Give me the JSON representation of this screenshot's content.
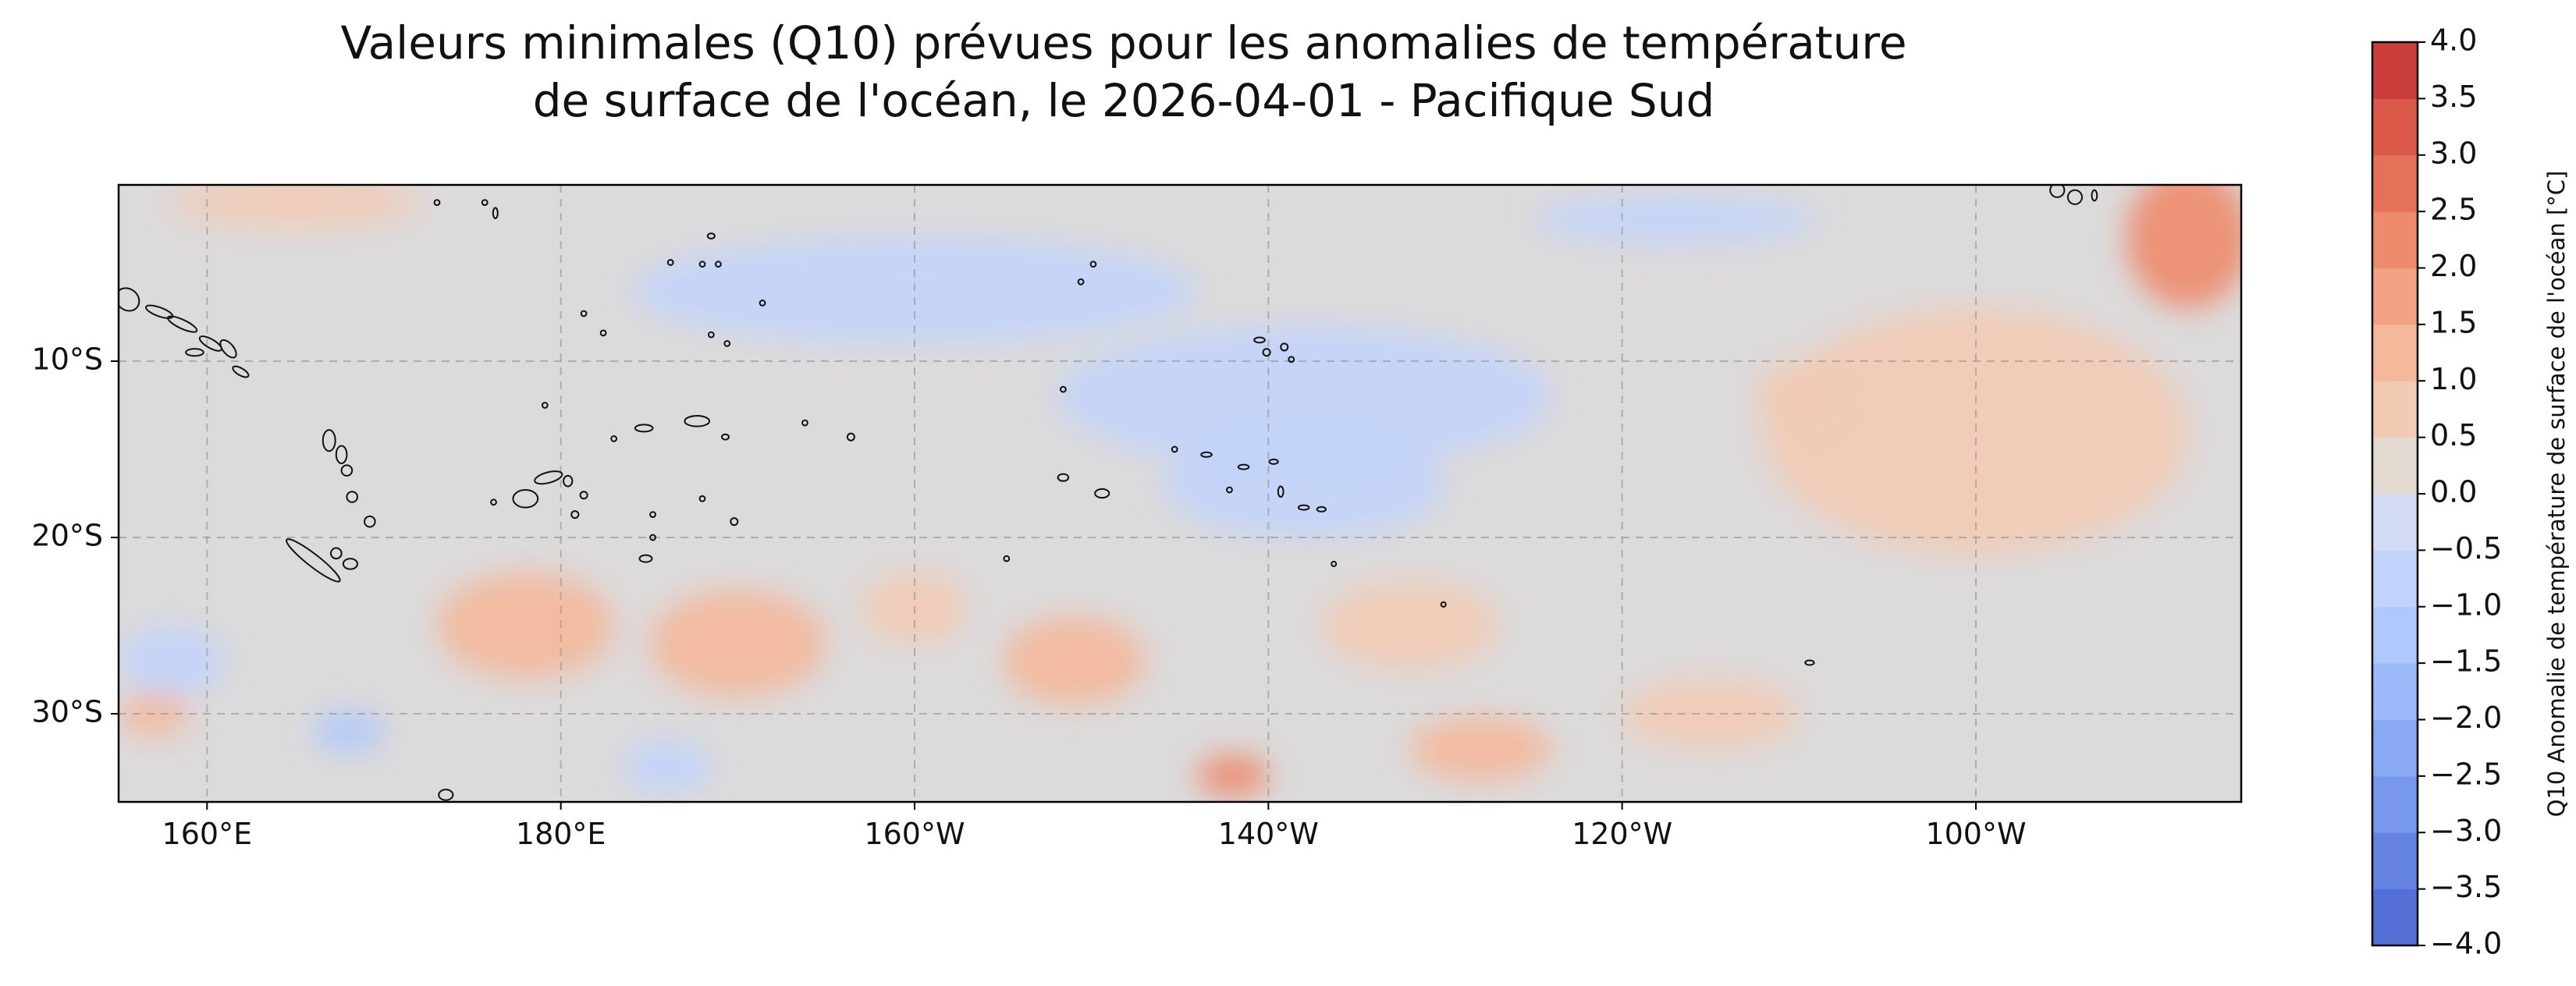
{
  "title": {
    "line1": "Valeurs minimales (Q10) prévues pour les anomalies de température",
    "line2": "de surface de l'océan, le 2026-04-01 - Pacifique Sud"
  },
  "map": {
    "region": "Pacifique Sud",
    "date": "2026-04-01",
    "extent": {
      "lon_min": 155,
      "lon_max": 275,
      "lat_min": -35,
      "lat_max": 0
    },
    "projection": "PlateCarree",
    "grid": true,
    "x_ticks": [
      {
        "lon": 160,
        "label": "160°E"
      },
      {
        "lon": 180,
        "label": "180°E"
      },
      {
        "lon": 200,
        "label": "160°W"
      },
      {
        "lon": 220,
        "label": "140°W"
      },
      {
        "lon": 240,
        "label": "120°W"
      },
      {
        "lon": 260,
        "label": "100°W"
      }
    ],
    "y_ticks": [
      {
        "lat": -10,
        "label": "10°S"
      },
      {
        "lat": -20,
        "label": "20°S"
      },
      {
        "lat": -30,
        "label": "30°S"
      }
    ],
    "background_level": "0.0 to 0.5",
    "anomaly_patches": [
      {
        "lon": 165,
        "lat": -1,
        "rx": 7,
        "ry": 1.4,
        "value": 0.8
      },
      {
        "lon": 260,
        "lat": -14,
        "rx": 12,
        "ry": 7,
        "value": 0.8
      },
      {
        "lon": 272,
        "lat": -3,
        "rx": 3.5,
        "ry": 4,
        "value": 2.3
      },
      {
        "lon": 250,
        "lat": -12,
        "rx": 2.5,
        "ry": 2,
        "value": 0.7
      },
      {
        "lon": 157,
        "lat": -30,
        "rx": 2,
        "ry": 1.2,
        "value": 1.2
      },
      {
        "lon": 178,
        "lat": -25,
        "rx": 5,
        "ry": 3,
        "value": 1.0
      },
      {
        "lon": 190,
        "lat": -26,
        "rx": 5,
        "ry": 3,
        "value": 1.0
      },
      {
        "lon": 200,
        "lat": -24,
        "rx": 3,
        "ry": 2,
        "value": 0.8
      },
      {
        "lon": 209,
        "lat": -27,
        "rx": 4,
        "ry": 2.5,
        "value": 1.0
      },
      {
        "lon": 228,
        "lat": -25,
        "rx": 5,
        "ry": 2.5,
        "value": 0.8
      },
      {
        "lon": 218,
        "lat": -33.5,
        "rx": 2,
        "ry": 1.2,
        "value": 2.0
      },
      {
        "lon": 232,
        "lat": -32,
        "rx": 4,
        "ry": 1.8,
        "value": 1.2
      },
      {
        "lon": 245,
        "lat": -30,
        "rx": 5,
        "ry": 2,
        "value": 0.7
      },
      {
        "lon": 243,
        "lat": -2,
        "rx": 8,
        "ry": 1.3,
        "value": -1.0
      },
      {
        "lon": 200,
        "lat": -6,
        "rx": 16,
        "ry": 3,
        "value": -0.6
      },
      {
        "lon": 222,
        "lat": -12,
        "rx": 14,
        "ry": 4,
        "value": -0.6
      },
      {
        "lon": 222,
        "lat": -17,
        "rx": 8,
        "ry": 3,
        "value": -0.6
      },
      {
        "lon": 158,
        "lat": -27,
        "rx": 3,
        "ry": 2,
        "value": -0.8
      },
      {
        "lon": 168,
        "lat": -31,
        "rx": 2,
        "ry": 1.2,
        "value": -1.3
      },
      {
        "lon": 186,
        "lat": -33,
        "rx": 2.5,
        "ry": 1.5,
        "value": -0.8
      }
    ],
    "islands": [
      {
        "lon": 155.5,
        "lat": -6.5,
        "rx": 0.7,
        "ry": 0.6,
        "rot": 40
      },
      {
        "lon": 157.3,
        "lat": -7.2,
        "rx": 0.8,
        "ry": 0.25,
        "rot": 20
      },
      {
        "lon": 158.6,
        "lat": -7.9,
        "rx": 0.9,
        "ry": 0.25,
        "rot": 25
      },
      {
        "lon": 160.2,
        "lat": -9.0,
        "rx": 0.7,
        "ry": 0.25,
        "rot": 30
      },
      {
        "lon": 161.2,
        "lat": -9.3,
        "rx": 0.6,
        "ry": 0.3,
        "rot": 50
      },
      {
        "lon": 159.3,
        "lat": -9.5,
        "rx": 0.5,
        "ry": 0.2,
        "rot": 0
      },
      {
        "lon": 161.9,
        "lat": -10.6,
        "rx": 0.5,
        "ry": 0.2,
        "rot": 30
      },
      {
        "lon": 166.9,
        "lat": -14.5,
        "rx": 0.35,
        "ry": 0.6,
        "rot": 0
      },
      {
        "lon": 167.6,
        "lat": -15.3,
        "rx": 0.3,
        "ry": 0.5,
        "rot": 0
      },
      {
        "lon": 167.9,
        "lat": -16.2,
        "rx": 0.3,
        "ry": 0.3,
        "rot": 0
      },
      {
        "lon": 168.2,
        "lat": -17.7,
        "rx": 0.3,
        "ry": 0.3,
        "rot": 0
      },
      {
        "lon": 169.2,
        "lat": -19.1,
        "rx": 0.3,
        "ry": 0.3,
        "rot": 0
      },
      {
        "lon": 166.0,
        "lat": -21.3,
        "rx": 1.9,
        "ry": 0.35,
        "rot": 38
      },
      {
        "lon": 167.3,
        "lat": -20.9,
        "rx": 0.3,
        "ry": 0.3,
        "rot": 0
      },
      {
        "lon": 168.1,
        "lat": -21.5,
        "rx": 0.4,
        "ry": 0.3,
        "rot": 0
      },
      {
        "lon": 178.0,
        "lat": -17.8,
        "rx": 0.7,
        "ry": 0.5,
        "rot": 0
      },
      {
        "lon": 179.3,
        "lat": -16.6,
        "rx": 0.8,
        "ry": 0.3,
        "rot": -15
      },
      {
        "lon": 180.4,
        "lat": -16.8,
        "rx": 0.25,
        "ry": 0.3,
        "rot": 0
      },
      {
        "lon": 180.8,
        "lat": -18.7,
        "rx": 0.2,
        "ry": 0.2,
        "rot": 0
      },
      {
        "lon": 181.3,
        "lat": -17.6,
        "rx": 0.2,
        "ry": 0.2,
        "rot": 0
      },
      {
        "lon": 184.7,
        "lat": -13.8,
        "rx": 0.5,
        "ry": 0.2,
        "rot": 0
      },
      {
        "lon": 187.7,
        "lat": -13.4,
        "rx": 0.7,
        "ry": 0.3,
        "rot": 0
      },
      {
        "lon": 189.3,
        "lat": -14.3,
        "rx": 0.2,
        "ry": 0.15,
        "rot": 0
      },
      {
        "lon": 184.8,
        "lat": -21.2,
        "rx": 0.35,
        "ry": 0.2,
        "rot": 0
      },
      {
        "lon": 185.2,
        "lat": -18.7,
        "rx": 0.15,
        "ry": 0.15,
        "rot": 0
      },
      {
        "lon": 189.8,
        "lat": -19.1,
        "rx": 0.2,
        "ry": 0.2,
        "rot": 0
      },
      {
        "lon": 193.8,
        "lat": -13.5,
        "rx": 0.15,
        "ry": 0.15,
        "rot": 0
      },
      {
        "lon": 196.4,
        "lat": -14.3,
        "rx": 0.2,
        "ry": 0.2,
        "rot": 0
      },
      {
        "lon": 188.0,
        "lat": -17.8,
        "rx": 0.15,
        "ry": 0.15,
        "rot": 0
      },
      {
        "lon": 183.0,
        "lat": -14.4,
        "rx": 0.15,
        "ry": 0.15,
        "rot": 0
      },
      {
        "lon": 179.1,
        "lat": -12.5,
        "rx": 0.15,
        "ry": 0.15,
        "rot": 0
      },
      {
        "lon": 176.2,
        "lat": -18.0,
        "rx": 0.15,
        "ry": 0.15,
        "rot": 0
      },
      {
        "lon": 173.0,
        "lat": -1.0,
        "rx": 0.15,
        "ry": 0.15,
        "rot": 0
      },
      {
        "lon": 175.7,
        "lat": -1.0,
        "rx": 0.15,
        "ry": 0.15,
        "rot": 0
      },
      {
        "lon": 176.3,
        "lat": -1.6,
        "rx": 0.1,
        "ry": 0.3,
        "rot": 0
      },
      {
        "lon": 181.3,
        "lat": -7.3,
        "rx": 0.15,
        "ry": 0.15,
        "rot": 0
      },
      {
        "lon": 182.4,
        "lat": -8.4,
        "rx": 0.15,
        "ry": 0.15,
        "rot": 0
      },
      {
        "lon": 188.5,
        "lat": -2.9,
        "rx": 0.2,
        "ry": 0.15,
        "rot": 0
      },
      {
        "lon": 188.0,
        "lat": -4.5,
        "rx": 0.15,
        "ry": 0.15,
        "rot": 0
      },
      {
        "lon": 188.9,
        "lat": -4.5,
        "rx": 0.15,
        "ry": 0.15,
        "rot": 0
      },
      {
        "lon": 191.4,
        "lat": -6.7,
        "rx": 0.15,
        "ry": 0.15,
        "rot": 0
      },
      {
        "lon": 186.2,
        "lat": -4.4,
        "rx": 0.15,
        "ry": 0.15,
        "rot": 0
      },
      {
        "lon": 188.5,
        "lat": -8.5,
        "rx": 0.15,
        "ry": 0.15,
        "rot": 0
      },
      {
        "lon": 189.4,
        "lat": -9.0,
        "rx": 0.15,
        "ry": 0.15,
        "rot": 0
      },
      {
        "lon": 210.1,
        "lat": -4.5,
        "rx": 0.15,
        "ry": 0.15,
        "rot": 0
      },
      {
        "lon": 209.4,
        "lat": -5.5,
        "rx": 0.15,
        "ry": 0.15,
        "rot": 0
      },
      {
        "lon": 208.4,
        "lat": -11.6,
        "rx": 0.15,
        "ry": 0.15,
        "rot": 0
      },
      {
        "lon": 208.4,
        "lat": -16.6,
        "rx": 0.3,
        "ry": 0.2,
        "rot": 0
      },
      {
        "lon": 210.6,
        "lat": -17.5,
        "rx": 0.4,
        "ry": 0.25,
        "rot": 0
      },
      {
        "lon": 205.2,
        "lat": -21.2,
        "rx": 0.15,
        "ry": 0.15,
        "rot": 0
      },
      {
        "lon": 219.5,
        "lat": -8.8,
        "rx": 0.3,
        "ry": 0.15,
        "rot": 0
      },
      {
        "lon": 219.9,
        "lat": -9.5,
        "rx": 0.2,
        "ry": 0.2,
        "rot": 0
      },
      {
        "lon": 220.9,
        "lat": -9.2,
        "rx": 0.2,
        "ry": 0.2,
        "rot": 0
      },
      {
        "lon": 221.3,
        "lat": -9.9,
        "rx": 0.15,
        "ry": 0.15,
        "rot": 0
      },
      {
        "lon": 214.7,
        "lat": -15.0,
        "rx": 0.15,
        "ry": 0.15,
        "rot": 0
      },
      {
        "lon": 216.5,
        "lat": -15.3,
        "rx": 0.3,
        "ry": 0.1,
        "rot": 0
      },
      {
        "lon": 218.6,
        "lat": -16.0,
        "rx": 0.3,
        "ry": 0.1,
        "rot": 0
      },
      {
        "lon": 217.8,
        "lat": -17.3,
        "rx": 0.15,
        "ry": 0.15,
        "rot": 0
      },
      {
        "lon": 220.3,
        "lat": -15.7,
        "rx": 0.25,
        "ry": 0.1,
        "rot": 0
      },
      {
        "lon": 220.7,
        "lat": -17.4,
        "rx": 0.15,
        "ry": 0.3,
        "rot": 0
      },
      {
        "lon": 222.0,
        "lat": -18.3,
        "rx": 0.3,
        "ry": 0.1,
        "rot": 0
      },
      {
        "lon": 223.0,
        "lat": -18.4,
        "rx": 0.25,
        "ry": 0.12,
        "rot": 0
      },
      {
        "lon": 223.7,
        "lat": -21.5,
        "rx": 0.12,
        "ry": 0.12,
        "rot": 0
      },
      {
        "lon": 229.9,
        "lat": -23.8,
        "rx": 0.12,
        "ry": 0.12,
        "rot": 0
      },
      {
        "lon": 250.6,
        "lat": -27.1,
        "rx": 0.25,
        "ry": 0.12,
        "rot": 0
      },
      {
        "lon": 264.6,
        "lat": -0.3,
        "rx": 0.4,
        "ry": 0.4,
        "rot": 0
      },
      {
        "lon": 265.6,
        "lat": -0.7,
        "rx": 0.4,
        "ry": 0.4,
        "rot": 0
      },
      {
        "lon": 266.7,
        "lat": -0.6,
        "rx": 0.15,
        "ry": 0.3,
        "rot": 0
      },
      {
        "lon": 173.5,
        "lat": -34.6,
        "rx": 0.4,
        "ry": 0.3,
        "rot": 0
      },
      {
        "lon": 185.2,
        "lat": -20.0,
        "rx": 0.15,
        "ry": 0.15,
        "rot": 0
      }
    ]
  },
  "colorbar": {
    "label": "Q10 Anomalie de température de surface de l'océan [°C]",
    "min": -4.0,
    "max": 4.0,
    "step": 0.5,
    "ticks": [
      "-4.0",
      "-3.5",
      "-3.0",
      "-2.5",
      "-2.0",
      "-1.5",
      "-1.0",
      "-0.5",
      "0.0",
      "0.5",
      "1.0",
      "1.5",
      "2.0",
      "2.5",
      "3.0",
      "3.5",
      "4.0"
    ],
    "tick_labels": [
      "−4.0",
      "−3.5",
      "−3.0",
      "−2.5",
      "−2.0",
      "−1.5",
      "−1.0",
      "−0.5",
      "0.0",
      "0.5",
      "1.0",
      "1.5",
      "2.0",
      "2.5",
      "3.0",
      "3.5",
      "4.0"
    ],
    "colors": [
      "#5470d6",
      "#6584e2",
      "#7898ec",
      "#8aa9f4",
      "#9dbbfa",
      "#b0c9fc",
      "#c2d4fb",
      "#d3dcf4",
      "#e3dad2",
      "#f2cbb5",
      "#f5b89b",
      "#f3a283",
      "#ee8b6c",
      "#e57258",
      "#d95848",
      "#c93d3a"
    ],
    "colormap": "coolwarm"
  }
}
